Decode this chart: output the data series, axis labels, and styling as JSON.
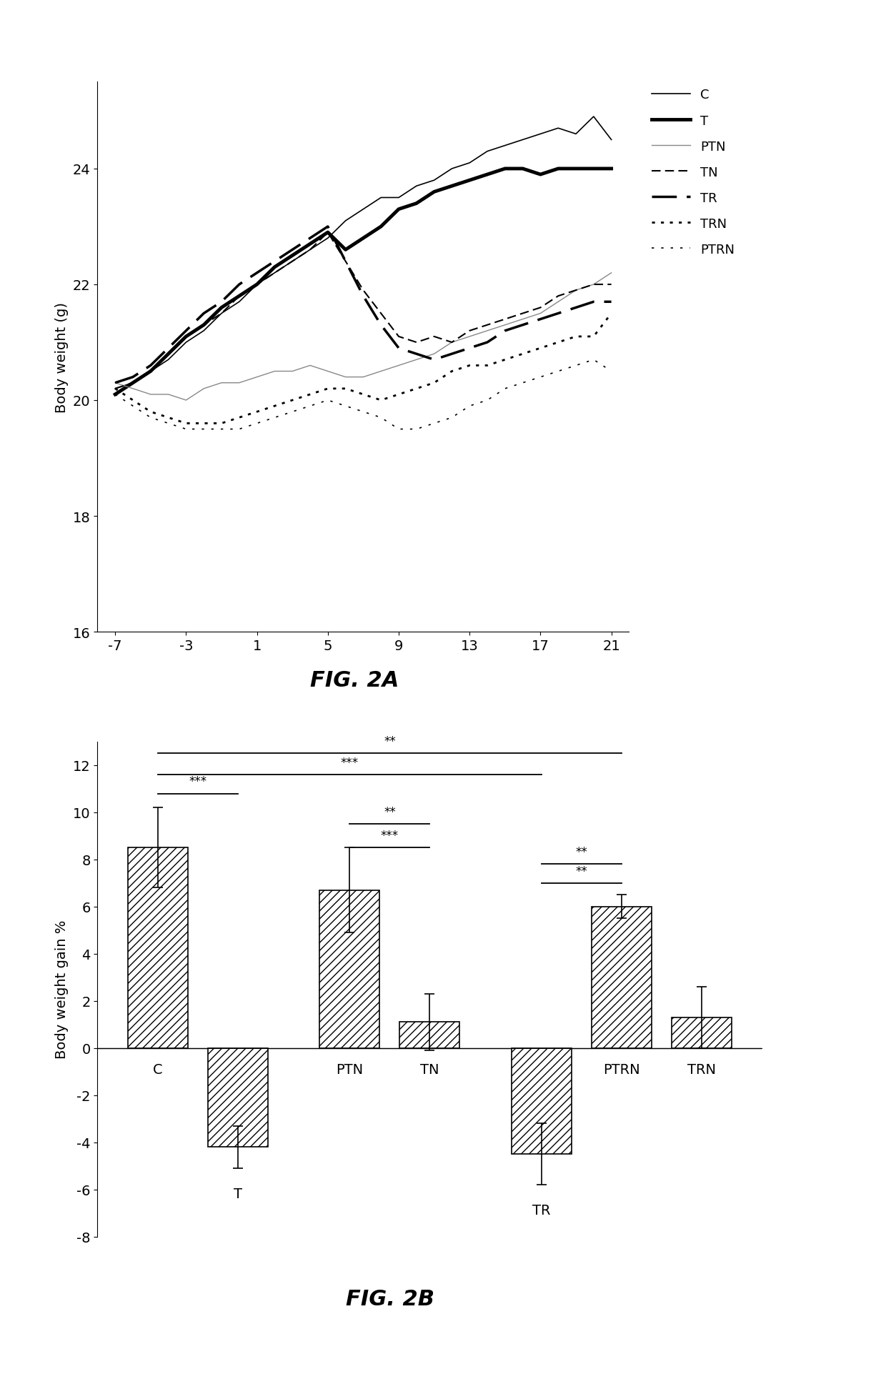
{
  "fig2a": {
    "x_ticks": [
      -7,
      -3,
      1,
      5,
      9,
      13,
      17,
      21
    ],
    "xlim": [
      -8,
      22
    ],
    "ylim": [
      16,
      25.5
    ],
    "yticks": [
      16,
      18,
      20,
      22,
      24
    ],
    "ylabel": "Body weight (g)",
    "lines": {
      "C": {
        "x": [
          -7,
          -6,
          -5,
          -4,
          -3,
          -2,
          -1,
          0,
          1,
          2,
          3,
          4,
          5,
          6,
          7,
          8,
          9,
          10,
          11,
          12,
          13,
          14,
          15,
          16,
          17,
          18,
          19,
          20,
          21
        ],
        "y": [
          20.2,
          20.3,
          20.5,
          20.7,
          21.0,
          21.2,
          21.5,
          21.7,
          22.0,
          22.2,
          22.4,
          22.6,
          22.8,
          23.1,
          23.3,
          23.5,
          23.5,
          23.7,
          23.8,
          24.0,
          24.1,
          24.3,
          24.4,
          24.5,
          24.6,
          24.7,
          24.6,
          24.9,
          24.5
        ],
        "linestyle": "solid",
        "linewidth": 1.2,
        "color": "#000000"
      },
      "T": {
        "x": [
          -7,
          -6,
          -5,
          -4,
          -3,
          -2,
          -1,
          0,
          1,
          2,
          3,
          4,
          5,
          6,
          7,
          8,
          9,
          10,
          11,
          12,
          13,
          14,
          15,
          16,
          17,
          18,
          19,
          20,
          21
        ],
        "y": [
          20.1,
          20.3,
          20.5,
          20.8,
          21.1,
          21.3,
          21.6,
          21.8,
          22.0,
          22.3,
          22.5,
          22.7,
          22.9,
          22.6,
          22.8,
          23.0,
          23.3,
          23.4,
          23.6,
          23.7,
          23.8,
          23.9,
          24.0,
          24.0,
          23.9,
          24.0,
          24.0,
          24.0,
          24.0
        ],
        "linestyle": "solid",
        "linewidth": 3.5,
        "color": "#000000"
      },
      "PTN": {
        "x": [
          -7,
          -6,
          -5,
          -4,
          -3,
          -2,
          -1,
          0,
          1,
          2,
          3,
          4,
          5,
          6,
          7,
          8,
          9,
          10,
          11,
          12,
          13,
          14,
          15,
          16,
          17,
          18,
          19,
          20,
          21
        ],
        "y": [
          20.3,
          20.2,
          20.1,
          20.1,
          20.0,
          20.2,
          20.3,
          20.3,
          20.4,
          20.5,
          20.5,
          20.6,
          20.5,
          20.4,
          20.4,
          20.5,
          20.6,
          20.7,
          20.8,
          21.0,
          21.1,
          21.2,
          21.3,
          21.4,
          21.5,
          21.7,
          21.9,
          22.0,
          22.2
        ],
        "linestyle": "solid",
        "linewidth": 1.0,
        "color": "#888888"
      },
      "TN": {
        "x": [
          -7,
          -6,
          -5,
          -4,
          -3,
          -2,
          -1,
          0,
          1,
          2,
          3,
          4,
          5,
          6,
          7,
          8,
          9,
          10,
          11,
          12,
          13,
          14,
          15,
          16,
          17,
          18,
          19,
          20,
          21
        ],
        "y": [
          20.2,
          20.3,
          20.5,
          20.8,
          21.1,
          21.3,
          21.5,
          21.8,
          22.0,
          22.2,
          22.4,
          22.6,
          22.9,
          22.4,
          21.9,
          21.5,
          21.1,
          21.0,
          21.1,
          21.0,
          21.2,
          21.3,
          21.4,
          21.5,
          21.6,
          21.8,
          21.9,
          22.0,
          22.0
        ],
        "linestyle": "dashed",
        "linewidth": 1.5,
        "color": "#000000",
        "dashes": [
          6,
          3
        ]
      },
      "TR": {
        "x": [
          -7,
          -6,
          -5,
          -4,
          -3,
          -2,
          -1,
          0,
          1,
          2,
          3,
          4,
          5,
          6,
          7,
          8,
          9,
          10,
          11,
          12,
          13,
          14,
          15,
          16,
          17,
          18,
          19,
          20,
          21
        ],
        "y": [
          20.3,
          20.4,
          20.6,
          20.9,
          21.2,
          21.5,
          21.7,
          22.0,
          22.2,
          22.4,
          22.6,
          22.8,
          23.0,
          22.4,
          21.8,
          21.3,
          20.9,
          20.8,
          20.7,
          20.8,
          20.9,
          21.0,
          21.2,
          21.3,
          21.4,
          21.5,
          21.6,
          21.7,
          21.7
        ],
        "linestyle": "dashed",
        "linewidth": 2.5,
        "color": "#000000",
        "dashes": [
          10,
          4
        ]
      },
      "TRN": {
        "x": [
          -7,
          -6,
          -5,
          -4,
          -3,
          -2,
          -1,
          0,
          1,
          2,
          3,
          4,
          5,
          6,
          7,
          8,
          9,
          10,
          11,
          12,
          13,
          14,
          15,
          16,
          17,
          18,
          19,
          20,
          21
        ],
        "y": [
          20.2,
          20.0,
          19.8,
          19.7,
          19.6,
          19.6,
          19.6,
          19.7,
          19.8,
          19.9,
          20.0,
          20.1,
          20.2,
          20.2,
          20.1,
          20.0,
          20.1,
          20.2,
          20.3,
          20.5,
          20.6,
          20.6,
          20.7,
          20.8,
          20.9,
          21.0,
          21.1,
          21.1,
          21.5
        ],
        "linestyle": "dotted",
        "linewidth": 2.0,
        "color": "#000000",
        "dashes": [
          1.5,
          3
        ]
      },
      "PTRN": {
        "x": [
          -7,
          -6,
          -5,
          -4,
          -3,
          -2,
          -1,
          0,
          1,
          2,
          3,
          4,
          5,
          6,
          7,
          8,
          9,
          10,
          11,
          12,
          13,
          14,
          15,
          16,
          17,
          18,
          19,
          20,
          21
        ],
        "y": [
          20.1,
          19.9,
          19.7,
          19.6,
          19.5,
          19.5,
          19.5,
          19.5,
          19.6,
          19.7,
          19.8,
          19.9,
          20.0,
          19.9,
          19.8,
          19.7,
          19.5,
          19.5,
          19.6,
          19.7,
          19.9,
          20.0,
          20.2,
          20.3,
          20.4,
          20.5,
          20.6,
          20.7,
          20.5
        ],
        "linestyle": "dotted",
        "linewidth": 1.2,
        "color": "#000000",
        "dashes": [
          2,
          6
        ]
      }
    }
  },
  "fig2b": {
    "categories": [
      "C",
      "T",
      "PTN",
      "TN",
      "TR",
      "PTRN",
      "TRN"
    ],
    "values": [
      8.5,
      -4.2,
      6.7,
      1.1,
      -4.5,
      6.0,
      1.3
    ],
    "errors": [
      1.7,
      0.9,
      1.8,
      1.2,
      1.3,
      0.5,
      1.3
    ],
    "ylim": [
      -8,
      13
    ],
    "yticks": [
      -8,
      -6,
      -4,
      -2,
      0,
      2,
      4,
      6,
      8,
      10,
      12
    ],
    "ylabel": "Body weight gain %"
  },
  "fig2a_label": "FIG. 2A",
  "fig2b_label": "FIG. 2B"
}
